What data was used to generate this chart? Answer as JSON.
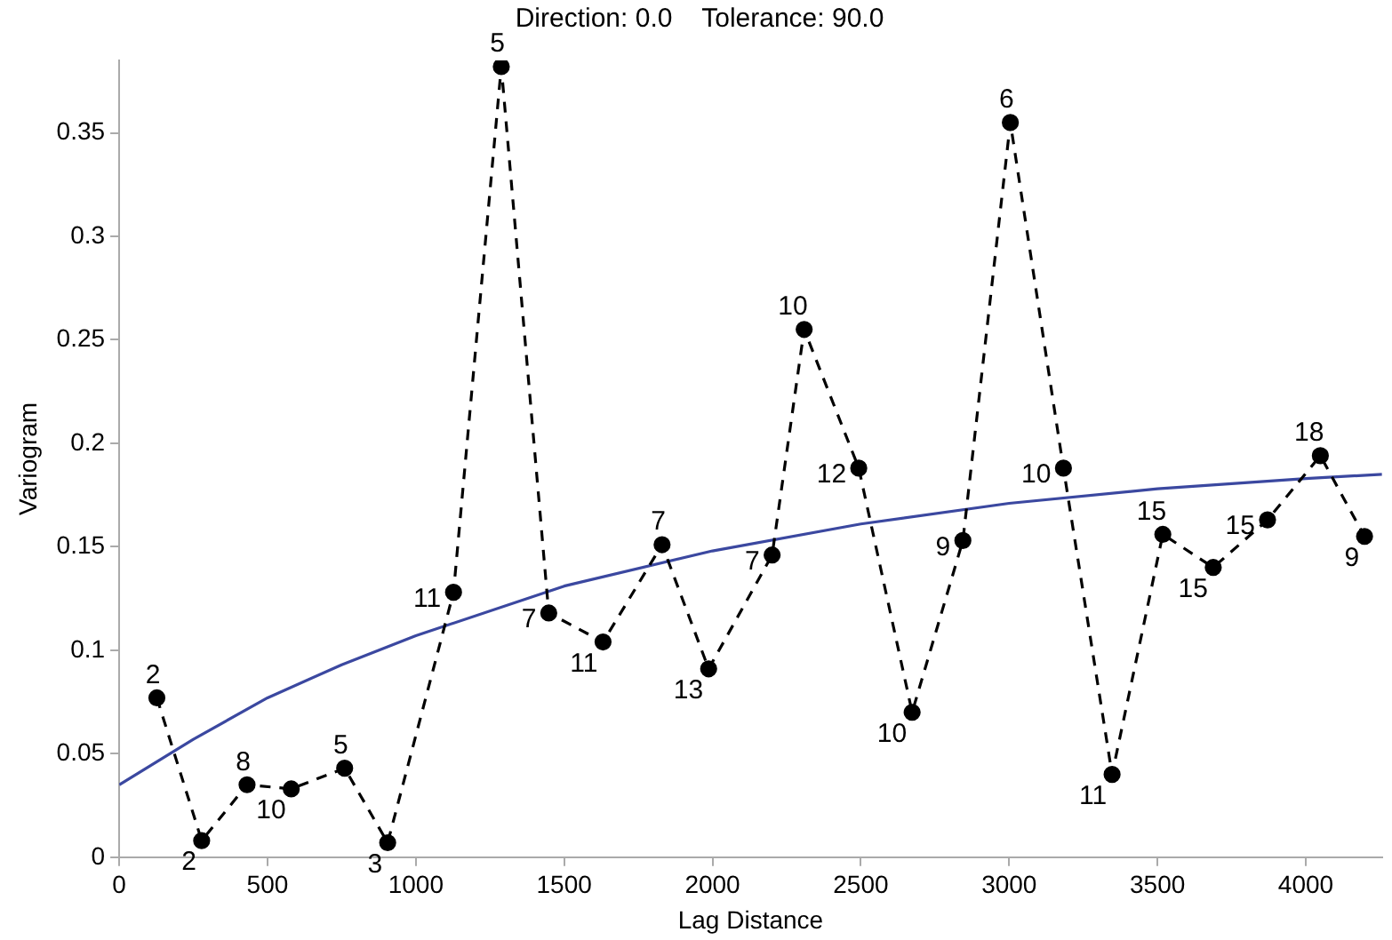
{
  "chart_data": {
    "type": "line",
    "title": "Direction: 0.0    Tolerance: 90.0",
    "xlabel": "Lag Distance",
    "ylabel": "Variogram",
    "xlim": [
      0,
      4257
    ],
    "xticks": [
      0,
      500,
      1000,
      1500,
      2000,
      2500,
      3000,
      3500,
      4000
    ],
    "ylim": [
      0,
      0.385
    ],
    "yticks": [
      0,
      0.05,
      0.1,
      0.15,
      0.2,
      0.25,
      0.3,
      0.35
    ],
    "grid": false,
    "legend": false,
    "series": [
      {
        "color": "#000000",
        "marker": "circle",
        "line_style": "dashed",
        "x": [
          127,
          278,
          431,
          580,
          760,
          905,
          1127,
          1288,
          1448,
          1631,
          1830,
          1987,
          2201,
          2309,
          2493,
          2673,
          2844,
          3004,
          3183,
          3347,
          3518,
          3688,
          3871,
          4049,
          4198
        ],
        "values": [
          0.077,
          0.008,
          0.035,
          0.033,
          0.043,
          0.007,
          0.128,
          0.382,
          0.118,
          0.104,
          0.151,
          0.091,
          0.146,
          0.255,
          0.188,
          0.07,
          0.153,
          0.355,
          0.188,
          0.04,
          0.156,
          0.14,
          0.163,
          0.194,
          0.155
        ]
      },
      {
        "color": "#3b48a0",
        "marker": "none",
        "line_style": "solid",
        "x": [
          0,
          250,
          500,
          750,
          1000,
          1500,
          2000,
          2500,
          3000,
          3500,
          4000,
          4257
        ],
        "values": [
          0.035,
          0.057,
          0.077,
          0.093,
          0.107,
          0.131,
          0.148,
          0.161,
          0.171,
          0.178,
          0.183,
          0.185
        ]
      }
    ],
    "annotations": [
      {
        "text": "2",
        "x": 127,
        "y": 0.077
      },
      {
        "text": "2",
        "x": 278,
        "y": 0.008
      },
      {
        "text": "8",
        "x": 431,
        "y": 0.035
      },
      {
        "text": "10",
        "x": 580,
        "y": 0.033
      },
      {
        "text": "5",
        "x": 760,
        "y": 0.043
      },
      {
        "text": "3",
        "x": 905,
        "y": 0.007
      },
      {
        "text": "11",
        "x": 1127,
        "y": 0.128
      },
      {
        "text": "5",
        "x": 1288,
        "y": 0.382
      },
      {
        "text": "7",
        "x": 1448,
        "y": 0.118
      },
      {
        "text": "11",
        "x": 1631,
        "y": 0.104
      },
      {
        "text": "7",
        "x": 1830,
        "y": 0.151
      },
      {
        "text": "13",
        "x": 1987,
        "y": 0.091
      },
      {
        "text": "7",
        "x": 2201,
        "y": 0.146
      },
      {
        "text": "10",
        "x": 2309,
        "y": 0.255
      },
      {
        "text": "12",
        "x": 2493,
        "y": 0.188
      },
      {
        "text": "10",
        "x": 2673,
        "y": 0.07
      },
      {
        "text": "9",
        "x": 2844,
        "y": 0.153
      },
      {
        "text": "6",
        "x": 3004,
        "y": 0.355
      },
      {
        "text": "10",
        "x": 3183,
        "y": 0.188
      },
      {
        "text": "11",
        "x": 3347,
        "y": 0.04
      },
      {
        "text": "15",
        "x": 3518,
        "y": 0.156
      },
      {
        "text": "15",
        "x": 3688,
        "y": 0.14
      },
      {
        "text": "15",
        "x": 3871,
        "y": 0.163
      },
      {
        "text": "18",
        "x": 4049,
        "y": 0.194
      },
      {
        "text": "9",
        "x": 4198,
        "y": 0.155
      }
    ]
  }
}
